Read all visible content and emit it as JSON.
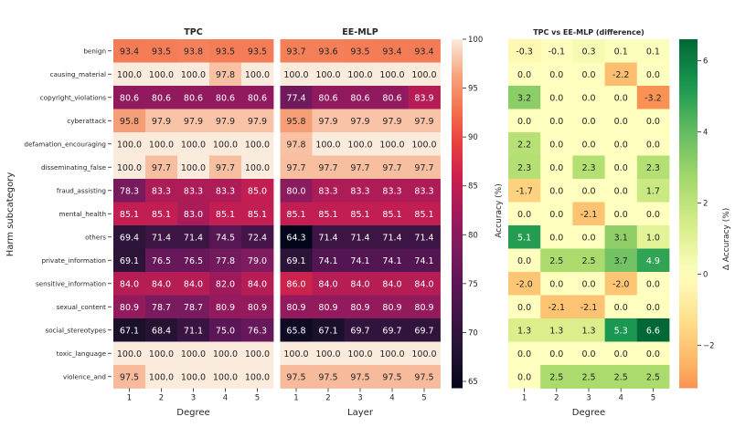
{
  "figure": {
    "ylabel": "Harm subcategory",
    "categories": [
      "benign",
      "causing_material",
      "copyright_violations",
      "cyberattack",
      "defamation_encouraging",
      "disseminating_false",
      "fraud_assisting",
      "mental_health",
      "others",
      "private_information",
      "sensitive_information",
      "sexual_content",
      "social_stereotypes",
      "toxic_language",
      "violence_and"
    ],
    "x_ticks": [
      "1",
      "2",
      "3",
      "4",
      "5"
    ]
  },
  "chart_data": [
    {
      "type": "heatmap",
      "title": "TPC",
      "xlabel": "Degree",
      "ylabel": "Harm subcategory",
      "x": [
        "1",
        "2",
        "3",
        "4",
        "5"
      ],
      "y": [
        "benign",
        "causing_material",
        "copyright_violations",
        "cyberattack",
        "defamation_encouraging",
        "disseminating_false",
        "fraud_assisting",
        "mental_health",
        "others",
        "private_information",
        "sensitive_information",
        "sexual_content",
        "social_stereotypes",
        "toxic_language",
        "violence_and"
      ],
      "values": [
        [
          93.4,
          93.5,
          93.8,
          93.5,
          93.5
        ],
        [
          100.0,
          100.0,
          100.0,
          97.8,
          100.0
        ],
        [
          80.6,
          80.6,
          80.6,
          80.6,
          80.6
        ],
        [
          95.8,
          97.9,
          97.9,
          97.9,
          97.9
        ],
        [
          100.0,
          100.0,
          100.0,
          100.0,
          100.0
        ],
        [
          100.0,
          97.7,
          100.0,
          97.7,
          100.0
        ],
        [
          78.3,
          83.3,
          83.3,
          83.3,
          85.0
        ],
        [
          85.1,
          85.1,
          83.0,
          85.1,
          85.1
        ],
        [
          69.4,
          71.4,
          71.4,
          74.5,
          72.4
        ],
        [
          69.1,
          76.5,
          76.5,
          77.8,
          79.0
        ],
        [
          84.0,
          84.0,
          84.0,
          82.0,
          84.0
        ],
        [
          80.9,
          78.7,
          78.7,
          80.9,
          80.9
        ],
        [
          67.1,
          68.4,
          71.1,
          75.0,
          76.3
        ],
        [
          100.0,
          100.0,
          100.0,
          100.0,
          100.0
        ],
        [
          97.5,
          100.0,
          100.0,
          100.0,
          100.0
        ]
      ],
      "colormap": "rocket",
      "vmin": 64.3,
      "vmax": 100
    },
    {
      "type": "heatmap",
      "title": "EE-MLP",
      "xlabel": "Layer",
      "x": [
        "1",
        "2",
        "3",
        "4",
        "5"
      ],
      "values": [
        [
          93.7,
          93.6,
          93.5,
          93.4,
          93.4
        ],
        [
          100.0,
          100.0,
          100.0,
          100.0,
          100.0
        ],
        [
          77.4,
          80.6,
          80.6,
          80.6,
          83.9
        ],
        [
          95.8,
          97.9,
          97.9,
          97.9,
          97.9
        ],
        [
          97.8,
          100.0,
          100.0,
          100.0,
          100.0
        ],
        [
          97.7,
          97.7,
          97.7,
          97.7,
          97.7
        ],
        [
          80.0,
          83.3,
          83.3,
          83.3,
          83.3
        ],
        [
          85.1,
          85.1,
          85.1,
          85.1,
          85.1
        ],
        [
          64.3,
          71.4,
          71.4,
          71.4,
          71.4
        ],
        [
          69.1,
          74.1,
          74.1,
          74.1,
          74.1
        ],
        [
          86.0,
          84.0,
          84.0,
          84.0,
          84.0
        ],
        [
          80.9,
          80.9,
          80.9,
          80.9,
          80.9
        ],
        [
          65.8,
          67.1,
          69.7,
          69.7,
          69.7
        ],
        [
          100.0,
          100.0,
          100.0,
          100.0,
          100.0
        ],
        [
          97.5,
          97.5,
          97.5,
          97.5,
          97.5
        ]
      ],
      "colormap": "rocket",
      "vmin": 64.3,
      "vmax": 100,
      "colorbar": {
        "label": "Accuracy (%)",
        "ticks": [
          65,
          70,
          75,
          80,
          85,
          90,
          95,
          100
        ]
      }
    },
    {
      "type": "heatmap",
      "title": "TPC vs EE-MLP (difference)",
      "xlabel": "Degree",
      "x": [
        "1",
        "2",
        "3",
        "4",
        "5"
      ],
      "values": [
        [
          -0.3,
          -0.1,
          0.3,
          0.1,
          0.1
        ],
        [
          0.0,
          0.0,
          0.0,
          -2.2,
          0.0
        ],
        [
          3.2,
          0.0,
          0.0,
          0.0,
          -3.2
        ],
        [
          0.0,
          0.0,
          0.0,
          0.0,
          0.0
        ],
        [
          2.2,
          0.0,
          0.0,
          0.0,
          0.0
        ],
        [
          2.3,
          0.0,
          2.3,
          0.0,
          2.3
        ],
        [
          -1.7,
          0.0,
          0.0,
          0.0,
          1.7
        ],
        [
          0.0,
          0.0,
          -2.1,
          0.0,
          0.0
        ],
        [
          5.1,
          0.0,
          0.0,
          3.1,
          1.0
        ],
        [
          0.0,
          2.5,
          2.5,
          3.7,
          4.9
        ],
        [
          -2.0,
          0.0,
          0.0,
          -2.0,
          0.0
        ],
        [
          0.0,
          -2.1,
          -2.1,
          0.0,
          0.0
        ],
        [
          1.3,
          1.3,
          1.3,
          5.3,
          6.6
        ],
        [
          0.0,
          0.0,
          0.0,
          0.0,
          0.0
        ],
        [
          0.0,
          2.5,
          2.5,
          2.5,
          2.5
        ]
      ],
      "colormap": "RdYlGn",
      "vmin": -3.2,
      "vmax": 6.6,
      "center": 0,
      "colorbar": {
        "label": "Δ Accuracy (%)",
        "ticks": [
          -2,
          0,
          2,
          4,
          6
        ],
        "tick_labels": [
          "−2",
          "0",
          "2",
          "4",
          "6"
        ]
      }
    }
  ]
}
